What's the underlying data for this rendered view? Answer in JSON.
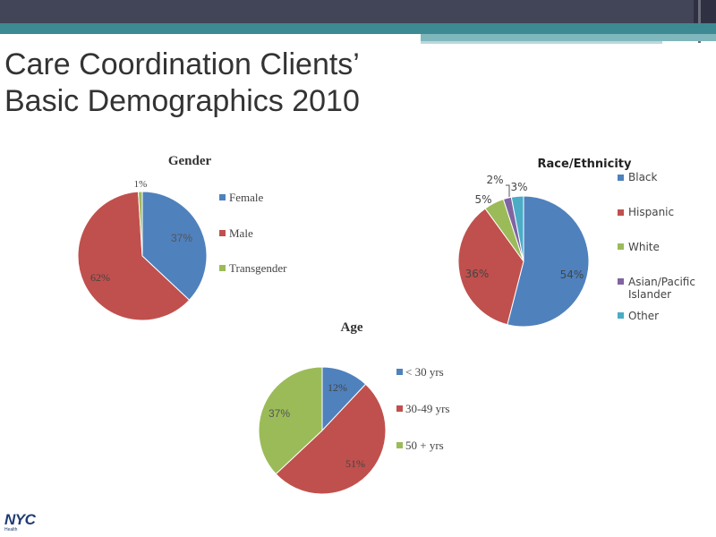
{
  "slide": {
    "title_line1": "Care Coordination Clients’",
    "title_line2": "Basic Demographics 2010"
  },
  "logo": {
    "text": "NYC",
    "subtext": "Health"
  },
  "colors": {
    "blue": "#4f81bd",
    "red": "#c0504d",
    "green": "#9bbb59",
    "purple": "#8064a2",
    "cyan": "#4bacc6",
    "header": "#424457",
    "teal": "#3d8a93"
  },
  "chart_data": [
    {
      "type": "pie",
      "title": "Gender",
      "slices": [
        {
          "label": "Female",
          "value": 37,
          "display": "37%",
          "color": "#4f81bd"
        },
        {
          "label": "Male",
          "value": 62,
          "display": "62%",
          "color": "#c0504d"
        },
        {
          "label": "Transgender",
          "value": 1,
          "display": "1%",
          "color": "#9bbb59"
        }
      ],
      "legend": "right"
    },
    {
      "type": "pie",
      "title": "Race/Ethnicity",
      "slices": [
        {
          "label": "Black",
          "value": 54,
          "display": "54%",
          "color": "#4f81bd"
        },
        {
          "label": "Hispanic",
          "value": 36,
          "display": "36%",
          "color": "#c0504d"
        },
        {
          "label": "White",
          "value": 5,
          "display": "5%",
          "color": "#9bbb59"
        },
        {
          "label": "Asian/Pacific Islander",
          "value": 2,
          "display": "2%",
          "color": "#8064a2"
        },
        {
          "label": "Other",
          "value": 3,
          "display": "3%",
          "color": "#4bacc6"
        }
      ],
      "legend": "right"
    },
    {
      "type": "pie",
      "title": "Age",
      "slices": [
        {
          "label": "< 30 yrs",
          "value": 12,
          "display": "12%",
          "color": "#4f81bd"
        },
        {
          "label": "30-49 yrs",
          "value": 51,
          "display": "51%",
          "color": "#c0504d"
        },
        {
          "label": "50 + yrs",
          "value": 37,
          "display": "37%",
          "color": "#9bbb59"
        }
      ],
      "legend": "right"
    }
  ]
}
